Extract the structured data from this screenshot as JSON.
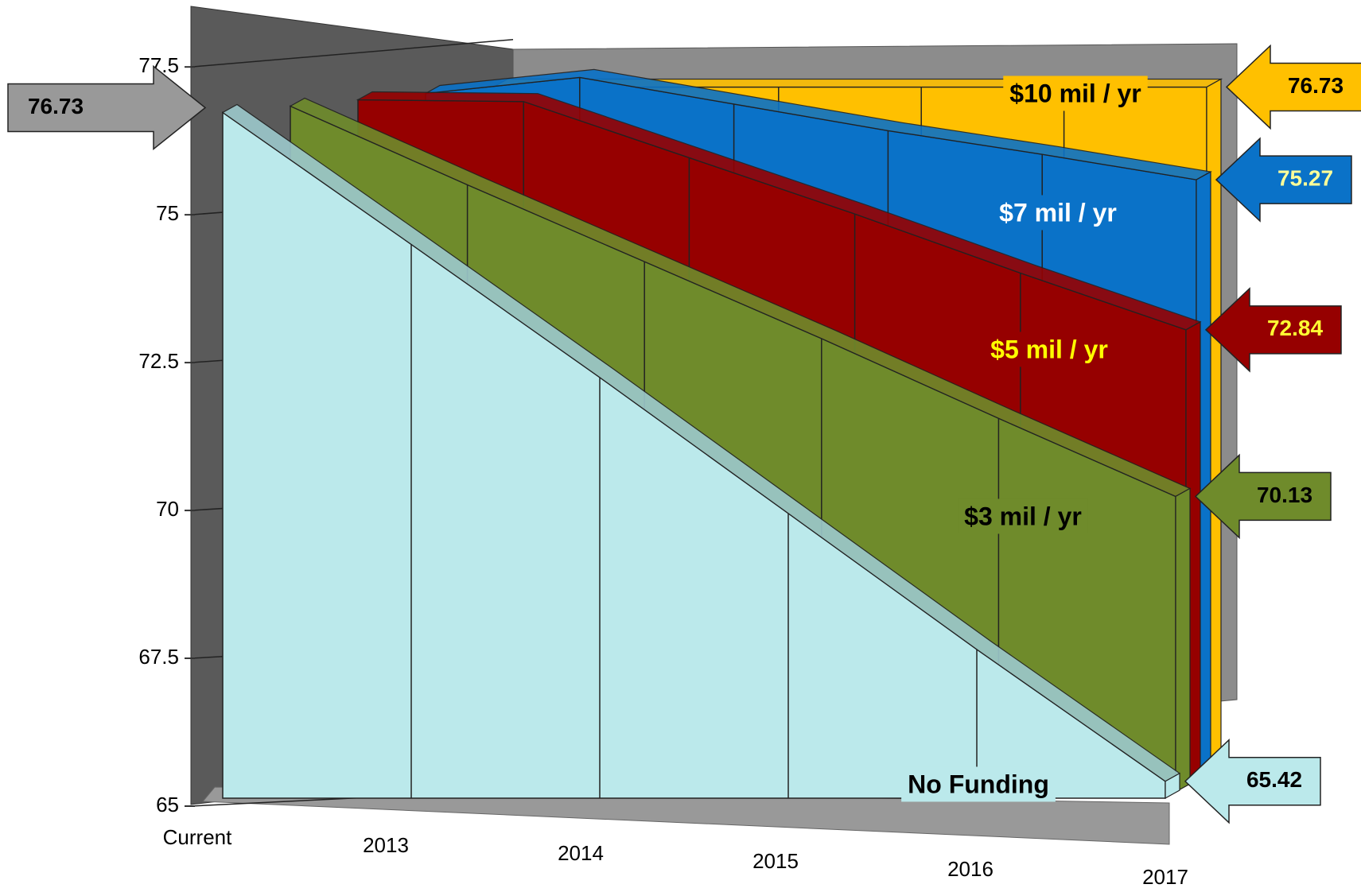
{
  "chart_data": {
    "type": "area3d",
    "categories": [
      "Current",
      "2013",
      "2014",
      "2015",
      "2016",
      "2017"
    ],
    "series": [
      {
        "name": "No Funding",
        "color": "#bbe9eb",
        "values": [
          76.73,
          74.5,
          72.25,
          69.95,
          67.65,
          65.42
        ]
      },
      {
        "name": "$3 mil / yr",
        "color": "#6f8b2b",
        "values": [
          76.73,
          75.4,
          74.1,
          72.8,
          71.45,
          70.13
        ]
      },
      {
        "name": "$5 mil / yr",
        "color": "#960000",
        "values": [
          76.73,
          76.7,
          75.75,
          74.8,
          73.8,
          72.84
        ]
      },
      {
        "name": "$7 mil / yr",
        "color": "#0a72c8",
        "values": [
          76.73,
          77.0,
          76.55,
          76.1,
          75.7,
          75.27
        ]
      },
      {
        "name": "$10 mil / yr",
        "color": "#ffc000",
        "values": [
          76.73,
          76.73,
          76.73,
          76.73,
          76.73,
          76.73
        ]
      }
    ],
    "ylim": [
      65,
      78
    ],
    "yticks": [
      65,
      67.5,
      70,
      72.5,
      75,
      77.5
    ],
    "grid": true
  }
}
